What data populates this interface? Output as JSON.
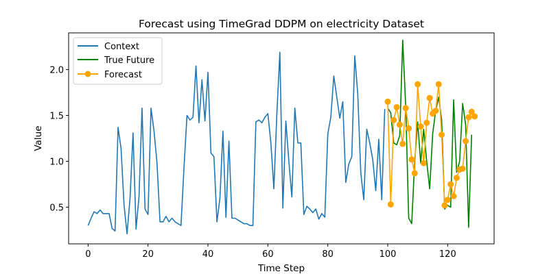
{
  "chart_data": {
    "type": "line",
    "title": "Forecast using TimeGrad DDPM on electricity Dataset",
    "xlabel": "Time Step",
    "ylabel": "Value",
    "xlim": [
      -6.5,
      135.5
    ],
    "ylim": [
      0.1,
      2.4
    ],
    "x_ticks": [
      0,
      20,
      40,
      60,
      80,
      100,
      120
    ],
    "y_ticks": [
      0.5,
      1.0,
      1.5,
      2.0
    ],
    "y_tick_labels": [
      "0.5",
      "1.0",
      "1.5",
      "2.0"
    ],
    "grid": false,
    "legend_position": "upper left",
    "series": [
      {
        "name": "Context",
        "color": "#1f77b4",
        "marker": "none",
        "x_start": 0,
        "values": [
          0.3,
          0.38,
          0.45,
          0.43,
          0.47,
          0.43,
          0.43,
          0.43,
          0.27,
          0.24,
          1.37,
          1.14,
          0.52,
          0.21,
          0.6,
          1.31,
          0.26,
          0.62,
          1.58,
          0.48,
          0.42,
          1.58,
          1.33,
          0.98,
          0.34,
          0.34,
          0.4,
          0.34,
          0.38,
          0.34,
          0.32,
          0.3,
          0.93,
          1.5,
          1.45,
          1.48,
          2.04,
          1.42,
          1.89,
          1.44,
          1.97,
          1.09,
          1.05,
          0.34,
          0.6,
          1.33,
          0.39,
          1.22,
          0.38,
          0.38,
          0.36,
          0.34,
          0.32,
          0.32,
          0.3,
          0.3,
          1.43,
          1.45,
          1.42,
          1.48,
          1.52,
          1.2,
          0.7,
          1.52,
          2.19,
          0.49,
          1.44,
          1.0,
          0.61,
          1.58,
          1.2,
          1.2,
          0.42,
          0.51,
          0.48,
          0.44,
          0.48,
          0.37,
          0.43,
          0.39,
          1.3,
          1.48,
          1.93,
          1.7,
          1.47,
          1.65,
          0.77,
          0.97,
          1.05,
          2.15,
          1.73,
          0.88,
          0.58,
          1.35,
          1.2,
          1.02,
          0.68,
          1.24,
          0.58,
          1.57
        ]
      },
      {
        "name": "True Future",
        "color": "#008000",
        "marker": "none",
        "x_start": 100,
        "values": [
          1.58,
          1.53,
          1.2,
          1.18,
          1.28,
          2.32,
          1.6,
          0.38,
          0.32,
          1.0,
          1.43,
          0.98,
          1.35,
          1.0,
          0.7,
          1.3,
          1.55,
          1.7,
          1.45,
          0.48,
          0.52,
          0.5,
          1.67,
          0.88,
          1.0,
          1.63,
          1.4,
          0.28,
          1.29
        ]
      },
      {
        "name": "Forecast",
        "color": "#ffa500",
        "marker": "circle",
        "x_start": 100,
        "values": [
          1.65,
          0.53,
          1.45,
          1.59,
          1.4,
          1.19,
          1.58,
          1.36,
          1.02,
          0.87,
          1.84,
          1.38,
          0.98,
          1.42,
          1.69,
          1.52,
          1.55,
          1.84,
          1.29,
          0.52,
          0.58,
          0.75,
          0.62,
          0.82,
          0.91,
          0.92,
          1.22,
          1.48,
          1.54,
          1.49
        ]
      }
    ]
  }
}
